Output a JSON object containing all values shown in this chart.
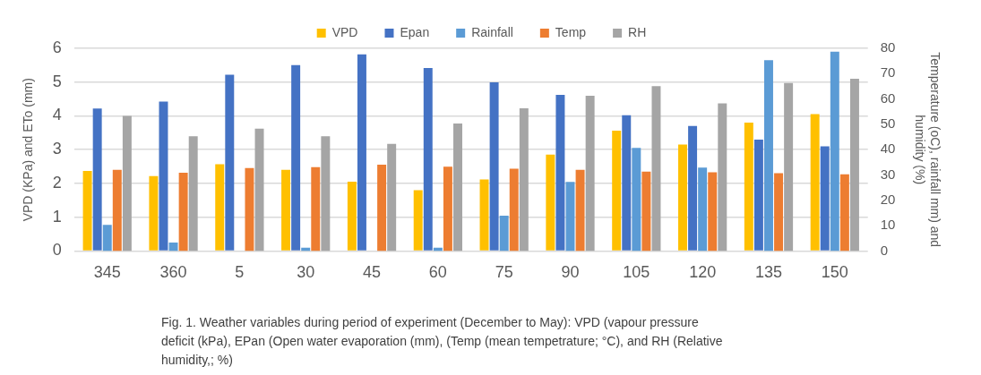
{
  "chart_data": {
    "type": "bar",
    "categories": [
      "345",
      "360",
      "5",
      "30",
      "45",
      "60",
      "75",
      "90",
      "105",
      "120",
      "135",
      "150"
    ],
    "series": [
      {
        "name": "VPD",
        "color": "#ffc000",
        "values": [
          2.37,
          2.22,
          2.57,
          2.4,
          2.05,
          1.8,
          2.12,
          2.85,
          3.56,
          3.15,
          3.8,
          4.05
        ]
      },
      {
        "name": "Epan",
        "color": "#4472c4",
        "values": [
          4.22,
          4.42,
          5.22,
          5.5,
          5.82,
          5.42,
          4.99,
          4.62,
          4.02,
          3.7,
          3.3,
          3.1
        ]
      },
      {
        "name": "Rainfall",
        "color": "#5b9bd5",
        "axis": "y2",
        "values": [
          10.3,
          3.3,
          0,
          1.3,
          0,
          1.3,
          13.9,
          27.3,
          40.7,
          32.9,
          75.3,
          78.7
        ]
      },
      {
        "name": "Temp",
        "color": "#ed7d31",
        "axis": "y2",
        "values": [
          32,
          30.9,
          32.7,
          33.1,
          34.1,
          33.3,
          32.5,
          32,
          31.3,
          31.1,
          30.7,
          30.3
        ]
      },
      {
        "name": "RH",
        "color": "#a5a5a5",
        "axis": "y2",
        "values": [
          53.3,
          45.3,
          48.3,
          45.3,
          42.3,
          50.3,
          56.3,
          61.3,
          65.1,
          58.3,
          66.3,
          68
        ]
      }
    ],
    "ylabel": "VPD (KPa) and ETo (mm)",
    "y2label": "Temperature (oC), rainfall mm) and humidity (%)",
    "ylim": [
      0,
      6
    ],
    "yticks": [
      0,
      1,
      2,
      3,
      4,
      5,
      6
    ],
    "y2lim": [
      0,
      80
    ],
    "y2ticks": [
      0,
      10,
      20,
      30,
      40,
      50,
      60,
      70,
      80
    ],
    "grid": "y",
    "legend": "top",
    "annotations": [
      "Fig. 1. Weather variables during period of experiment (December to May): VPD (vapour pressure deficit (kPa), EPan (Open water evaporation (mm), (Temp (mean tempetrature; °C), and RH (Relative humidity,; %)"
    ]
  }
}
